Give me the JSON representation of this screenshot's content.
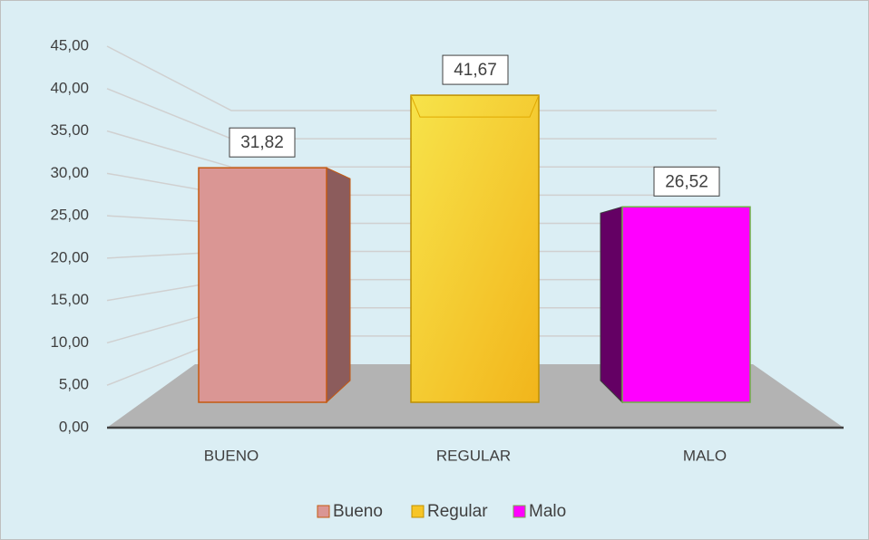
{
  "chart_data": {
    "type": "bar3d",
    "categories": [
      "BUENO",
      "REGULAR",
      "MALO"
    ],
    "values": [
      31.82,
      41.67,
      26.52
    ],
    "value_labels": [
      "31,82",
      "41,67",
      "26,52"
    ],
    "legend_labels": [
      "Bueno",
      "Regular",
      "Malo"
    ],
    "colors": [
      "#da9694",
      "#f7c526",
      "#ff00ff"
    ],
    "ylim": [
      0,
      45
    ],
    "yticks": [
      {
        "value": 0,
        "label": "0,00"
      },
      {
        "value": 5,
        "label": "5,00"
      },
      {
        "value": 10,
        "label": "10,00"
      },
      {
        "value": 15,
        "label": "15,00"
      },
      {
        "value": 20,
        "label": "20,00"
      },
      {
        "value": 25,
        "label": "25,00"
      },
      {
        "value": 30,
        "label": "30,00"
      },
      {
        "value": 35,
        "label": "35,00"
      },
      {
        "value": 40,
        "label": "40,00"
      },
      {
        "value": 45,
        "label": "45,00"
      }
    ],
    "grid": true,
    "legend": "bottom"
  }
}
